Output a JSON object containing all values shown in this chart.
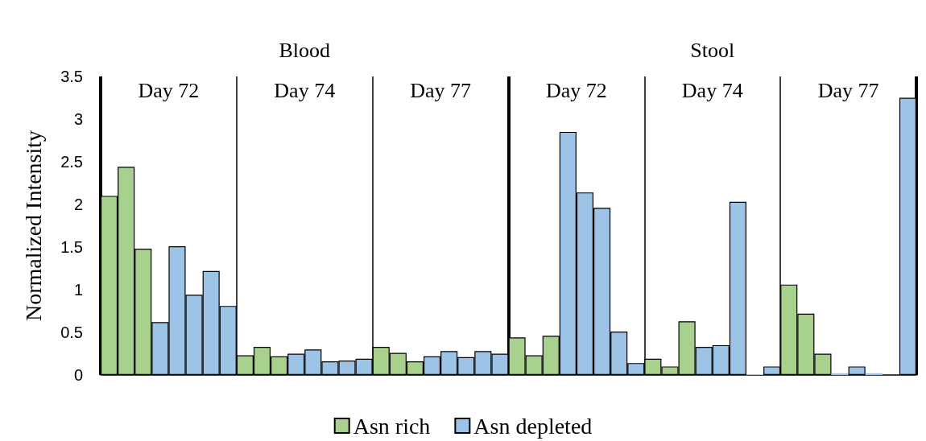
{
  "chart_data": {
    "type": "bar",
    "ylabel": "Normalized Intensity",
    "annotations": [
      "Blood",
      "Stool",
      "Day 72",
      "Day 74",
      "Day 77",
      "Day 72",
      "Day 74",
      "Day 77"
    ],
    "categories": [
      null,
      null,
      null,
      null,
      null,
      null,
      null,
      null,
      null,
      null,
      null,
      null,
      null,
      null,
      null,
      null,
      null,
      null,
      null,
      null,
      null,
      null,
      null,
      null,
      null,
      null,
      null,
      null,
      null,
      null,
      null,
      null,
      null,
      null,
      null,
      null,
      null,
      null,
      null,
      null,
      null,
      null,
      null,
      null,
      null,
      null,
      null,
      null
    ],
    "series": [
      {
        "name": "Asn rich",
        "color": "#a9d18e",
        "values": [
          2.1,
          2.44,
          1.48,
          null,
          null,
          null,
          null,
          null,
          0.23,
          0.33,
          0.22,
          null,
          null,
          null,
          null,
          null,
          0.33,
          0.26,
          0.16,
          null,
          null,
          null,
          null,
          null,
          0.44,
          0.23,
          0.46,
          null,
          null,
          null,
          null,
          null,
          0.19,
          0.1,
          0.63,
          null,
          null,
          null,
          null,
          null,
          1.06,
          0.72,
          0.25,
          null,
          null,
          null,
          null,
          null
        ]
      },
      {
        "name": "Asn depleted",
        "color": "#9dc3e6",
        "values": [
          null,
          null,
          null,
          0.62,
          1.51,
          0.94,
          1.22,
          0.81,
          null,
          null,
          null,
          0.25,
          0.3,
          0.16,
          0.17,
          0.19,
          null,
          null,
          null,
          0.22,
          0.28,
          0.21,
          0.28,
          0.25,
          null,
          null,
          null,
          2.85,
          2.14,
          1.96,
          0.51,
          0.14,
          null,
          null,
          null,
          0.33,
          0.35,
          2.03,
          0.01,
          0.1,
          null,
          null,
          null,
          0.02,
          0.1,
          0.02,
          0,
          3.25
        ]
      }
    ],
    "ylim": [
      0,
      3.5
    ],
    "yticks": [
      0,
      0.5,
      1,
      1.5,
      2,
      2.5,
      3,
      3.5
    ],
    "grid": false,
    "legend": "bottom"
  }
}
